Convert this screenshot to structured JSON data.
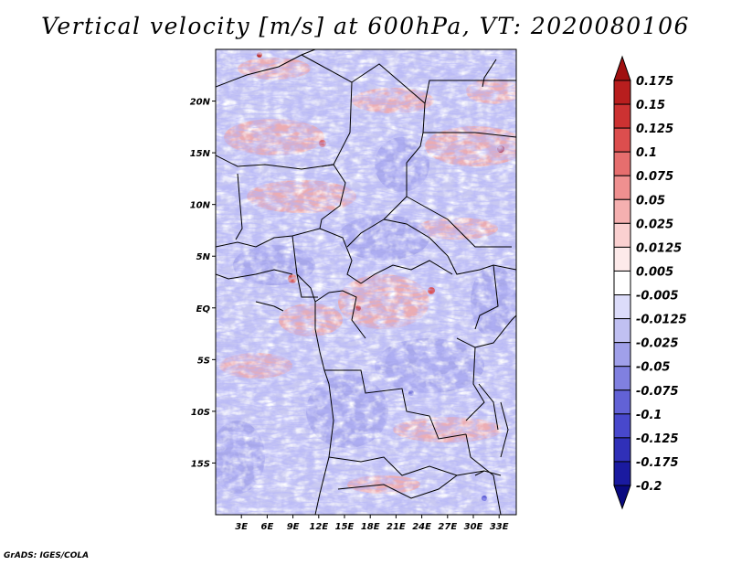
{
  "title": "Vertical velocity [m/s] at 600hPa, VT: 2020080106",
  "credit": "GrADS: IGES/COLA",
  "map": {
    "lon_range": [
      0,
      35
    ],
    "lat_range": [
      -20,
      25
    ],
    "lon_ticks": [
      {
        "value": 3,
        "label": "3E"
      },
      {
        "value": 6,
        "label": "6E"
      },
      {
        "value": 9,
        "label": "9E"
      },
      {
        "value": 12,
        "label": "12E"
      },
      {
        "value": 15,
        "label": "15E"
      },
      {
        "value": 18,
        "label": "18E"
      },
      {
        "value": 21,
        "label": "21E"
      },
      {
        "value": 24,
        "label": "24E"
      },
      {
        "value": 27,
        "label": "27E"
      },
      {
        "value": 30,
        "label": "30E"
      },
      {
        "value": 33,
        "label": "33E"
      }
    ],
    "lat_ticks": [
      {
        "value": 20,
        "label": "20N"
      },
      {
        "value": 15,
        "label": "15N"
      },
      {
        "value": 10,
        "label": "10N"
      },
      {
        "value": 5,
        "label": "5N"
      },
      {
        "value": 0,
        "label": "EQ"
      },
      {
        "value": -5,
        "label": "5S"
      },
      {
        "value": -10,
        "label": "10S"
      },
      {
        "value": -15,
        "label": "15S"
      }
    ]
  },
  "colorbar": {
    "labels": [
      "0.175",
      "0.15",
      "0.125",
      "0.1",
      "0.075",
      "0.05",
      "0.025",
      "0.0125",
      "0.005",
      "-0.005",
      "-0.0125",
      "-0.025",
      "-0.05",
      "-0.075",
      "-0.1",
      "-0.125",
      "-0.175",
      "-0.2"
    ],
    "colors": [
      "#a01010",
      "#b81e1e",
      "#cc3232",
      "#dc4e4e",
      "#e66e6e",
      "#ef9090",
      "#f5b0b0",
      "#fad0d0",
      "#fdeaea",
      "#ffffff",
      "#dcdcfa",
      "#c0c0f2",
      "#a0a0ea",
      "#8080e0",
      "#6262d6",
      "#4848cc",
      "#3030b8",
      "#1a1aa0",
      "#0a0a80"
    ]
  }
}
